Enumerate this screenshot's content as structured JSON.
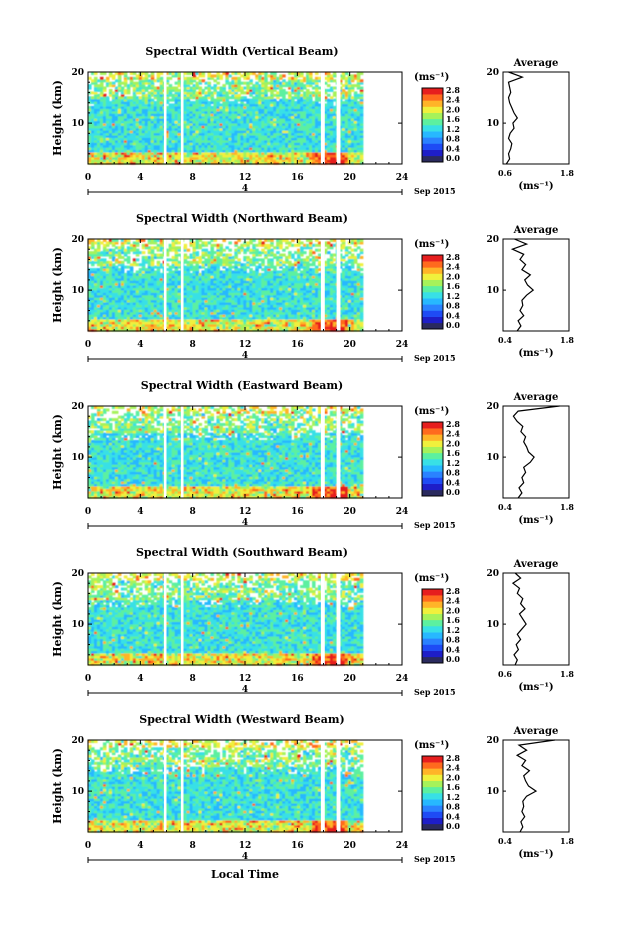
{
  "figure": {
    "xlabel": "Local Time",
    "date_label": "Sep 2015",
    "date_marker": "4",
    "ylabel": "Height (km)",
    "unit": "(ms⁻¹)",
    "avg_title": "Average",
    "avg_xlabel": "(ms⁻¹)"
  },
  "chart_data": [
    {
      "type": "heatmap",
      "title": "Spectral Width (Vertical Beam)",
      "xlabel": "Local Time",
      "ylabel": "Height (km)",
      "xlim": [
        0,
        24
      ],
      "ylim": [
        2,
        20
      ],
      "xticks": [
        0,
        4,
        8,
        12,
        16,
        20,
        24
      ],
      "yticks": [
        10,
        20
      ],
      "data_end_hour": 21,
      "gap_hours": [
        [
          5.8,
          6.0
        ],
        [
          7.1,
          7.3
        ],
        [
          17.8,
          18.1
        ],
        [
          19.0,
          19.3
        ]
      ],
      "colorbar": {
        "min": 0.0,
        "max": 2.8,
        "ticks": [
          "2.8",
          "2.4",
          "2.0",
          "1.6",
          "1.2",
          "0.8",
          "0.4",
          "0.0"
        ]
      },
      "average": {
        "xlim": [
          0.6,
          1.8
        ],
        "xticks": [
          "0.6",
          "1.8"
        ],
        "profile": [
          [
            2,
            0.66
          ],
          [
            3,
            0.72
          ],
          [
            4,
            0.7
          ],
          [
            5,
            0.74
          ],
          [
            6,
            0.76
          ],
          [
            7,
            0.7
          ],
          [
            8,
            0.73
          ],
          [
            9,
            0.8
          ],
          [
            10,
            0.78
          ],
          [
            11,
            0.86
          ],
          [
            12,
            0.8
          ],
          [
            13,
            0.76
          ],
          [
            14,
            0.72
          ],
          [
            15,
            0.7
          ],
          [
            16,
            0.74
          ],
          [
            17,
            0.72
          ],
          [
            18,
            0.7
          ],
          [
            19,
            0.95
          ],
          [
            20,
            0.7
          ]
        ]
      }
    },
    {
      "type": "heatmap",
      "title": "Spectral Width (Northward Beam)",
      "xlabel": "Local Time",
      "ylabel": "Height (km)",
      "xlim": [
        0,
        24
      ],
      "ylim": [
        2,
        20
      ],
      "xticks": [
        0,
        4,
        8,
        12,
        16,
        20,
        24
      ],
      "yticks": [
        10,
        20
      ],
      "data_end_hour": 21,
      "gap_hours": [
        [
          5.8,
          6.0
        ],
        [
          7.1,
          7.3
        ],
        [
          17.8,
          18.1
        ],
        [
          19.0,
          19.3
        ]
      ],
      "colorbar": {
        "min": 0.0,
        "max": 2.8,
        "ticks": [
          "2.8",
          "2.4",
          "2.0",
          "1.6",
          "1.2",
          "0.8",
          "0.4",
          "0.0"
        ]
      },
      "average": {
        "xlim": [
          0.4,
          1.8
        ],
        "xticks": [
          "0.4",
          "1.8"
        ],
        "profile": [
          [
            2,
            0.7
          ],
          [
            3,
            0.78
          ],
          [
            4,
            0.72
          ],
          [
            5,
            0.84
          ],
          [
            6,
            0.76
          ],
          [
            7,
            0.82
          ],
          [
            8,
            0.8
          ],
          [
            9,
            0.9
          ],
          [
            10,
            1.04
          ],
          [
            11,
            0.92
          ],
          [
            12,
            0.86
          ],
          [
            13,
            0.98
          ],
          [
            14,
            0.8
          ],
          [
            15,
            0.88
          ],
          [
            16,
            0.76
          ],
          [
            17,
            0.84
          ],
          [
            18,
            0.6
          ],
          [
            19,
            0.9
          ],
          [
            20,
            0.64
          ]
        ]
      }
    },
    {
      "type": "heatmap",
      "title": "Spectral Width (Eastward Beam)",
      "xlabel": "Local Time",
      "ylabel": "Height (km)",
      "xlim": [
        0,
        24
      ],
      "ylim": [
        2,
        20
      ],
      "xticks": [
        0,
        4,
        8,
        12,
        16,
        20,
        24
      ],
      "yticks": [
        10,
        20
      ],
      "data_end_hour": 21,
      "gap_hours": [
        [
          5.8,
          6.0
        ],
        [
          7.1,
          7.3
        ],
        [
          17.8,
          18.1
        ],
        [
          19.0,
          19.3
        ]
      ],
      "colorbar": {
        "min": 0.0,
        "max": 2.8,
        "ticks": [
          "2.8",
          "2.4",
          "2.0",
          "1.6",
          "1.2",
          "0.8",
          "0.4",
          "0.0"
        ]
      },
      "average": {
        "xlim": [
          0.4,
          1.8
        ],
        "xticks": [
          "0.4",
          "1.8"
        ],
        "profile": [
          [
            2,
            0.72
          ],
          [
            3,
            0.8
          ],
          [
            4,
            0.74
          ],
          [
            5,
            0.84
          ],
          [
            6,
            0.8
          ],
          [
            7,
            0.88
          ],
          [
            8,
            0.84
          ],
          [
            9,
            0.98
          ],
          [
            10,
            1.06
          ],
          [
            11,
            0.94
          ],
          [
            12,
            0.9
          ],
          [
            13,
            0.84
          ],
          [
            14,
            0.88
          ],
          [
            15,
            0.78
          ],
          [
            16,
            0.82
          ],
          [
            17,
            0.7
          ],
          [
            18,
            0.62
          ],
          [
            19,
            0.72
          ],
          [
            20,
            1.6
          ]
        ]
      }
    },
    {
      "type": "heatmap",
      "title": "Spectral Width (Southward Beam)",
      "xlabel": "Local Time",
      "ylabel": "Height (km)",
      "xlim": [
        0,
        24
      ],
      "ylim": [
        2,
        20
      ],
      "xticks": [
        0,
        4,
        8,
        12,
        16,
        20,
        24
      ],
      "yticks": [
        10,
        20
      ],
      "data_end_hour": 21,
      "gap_hours": [
        [
          5.8,
          6.0
        ],
        [
          7.1,
          7.3
        ],
        [
          17.8,
          18.1
        ],
        [
          19.0,
          19.3
        ]
      ],
      "colorbar": {
        "min": 0.0,
        "max": 2.8,
        "ticks": [
          "2.8",
          "2.4",
          "2.0",
          "1.6",
          "1.2",
          "0.8",
          "0.4",
          "0.0"
        ]
      },
      "average": {
        "xlim": [
          0.6,
          1.8
        ],
        "xticks": [
          "0.6",
          "1.8"
        ],
        "profile": [
          [
            2,
            0.82
          ],
          [
            3,
            0.86
          ],
          [
            4,
            0.8
          ],
          [
            5,
            0.88
          ],
          [
            6,
            0.84
          ],
          [
            7,
            0.92
          ],
          [
            8,
            0.86
          ],
          [
            9,
            0.94
          ],
          [
            10,
            1.02
          ],
          [
            11,
            0.96
          ],
          [
            12,
            0.9
          ],
          [
            13,
            1.0
          ],
          [
            14,
            0.92
          ],
          [
            15,
            0.96
          ],
          [
            16,
            0.86
          ],
          [
            17,
            0.9
          ],
          [
            18,
            0.78
          ],
          [
            19,
            0.92
          ],
          [
            20,
            0.82
          ]
        ]
      }
    },
    {
      "type": "heatmap",
      "title": "Spectral Width (Westward Beam)",
      "xlabel": "Local Time",
      "ylabel": "Height (km)",
      "xlim": [
        0,
        24
      ],
      "ylim": [
        2,
        20
      ],
      "xticks": [
        0,
        4,
        8,
        12,
        16,
        20,
        24
      ],
      "yticks": [
        10,
        20
      ],
      "data_end_hour": 21,
      "gap_hours": [
        [
          5.8,
          6.0
        ],
        [
          7.1,
          7.3
        ],
        [
          17.8,
          18.1
        ],
        [
          19.0,
          19.3
        ]
      ],
      "colorbar": {
        "min": 0.0,
        "max": 2.8,
        "ticks": [
          "2.8",
          "2.4",
          "2.0",
          "1.6",
          "1.2",
          "0.8",
          "0.4",
          "0.0"
        ]
      },
      "average": {
        "xlim": [
          0.4,
          1.8
        ],
        "xticks": [
          "0.4",
          "1.8"
        ],
        "profile": [
          [
            2,
            0.76
          ],
          [
            3,
            0.82
          ],
          [
            4,
            0.78
          ],
          [
            5,
            0.86
          ],
          [
            6,
            0.8
          ],
          [
            7,
            0.84
          ],
          [
            8,
            0.82
          ],
          [
            9,
            0.9
          ],
          [
            10,
            1.1
          ],
          [
            11,
            0.94
          ],
          [
            12,
            0.88
          ],
          [
            13,
            0.84
          ],
          [
            14,
            0.96
          ],
          [
            15,
            0.8
          ],
          [
            16,
            0.88
          ],
          [
            17,
            0.7
          ],
          [
            18,
            0.9
          ],
          [
            19,
            0.74
          ],
          [
            20,
            1.5
          ]
        ]
      }
    }
  ],
  "colormap": [
    "#2a2a5e",
    "#1e1ec8",
    "#1e4bf5",
    "#2a82ff",
    "#27b8ff",
    "#38e0e6",
    "#5cf0a0",
    "#a6f25a",
    "#f0f03c",
    "#ffb428",
    "#ff6a1e",
    "#e61e1e"
  ]
}
